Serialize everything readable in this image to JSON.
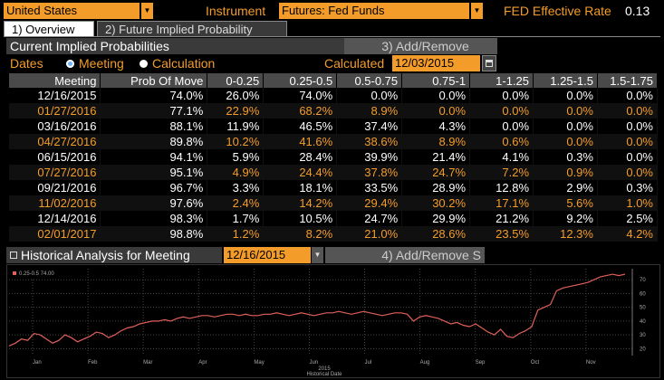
{
  "top": {
    "country": "United States",
    "instrument_label": "Instrument",
    "instrument_value": "Futures: Fed Funds",
    "fed_rate_label": "FED Effective Rate",
    "fed_rate_value": "0.13"
  },
  "tabs": [
    {
      "label": "1) Overview"
    },
    {
      "label": "2) Future Implied Probability"
    }
  ],
  "probabilities": {
    "title": "Current Implied Probabilities",
    "add_remove": "3) Add/Remove",
    "dates_label": "Dates",
    "radio_meeting": "Meeting",
    "radio_calculation": "Calculation",
    "calculated_label": "Calculated",
    "calculated_value": "12/03/2015",
    "columns": [
      "Meeting",
      "Prob Of Move",
      "0-0.25",
      "0.25-0.5",
      "0.5-0.75",
      "0.75-1",
      "1-1.25",
      "1.25-1.5",
      "1.5-1.75"
    ],
    "rows": [
      [
        "12/16/2015",
        "74.0%",
        "26.0%",
        "74.0%",
        "0.0%",
        "0.0%",
        "0.0%",
        "0.0%",
        "0.0%"
      ],
      [
        "01/27/2016",
        "77.1%",
        "22.9%",
        "68.2%",
        "8.9%",
        "0.0%",
        "0.0%",
        "0.0%",
        "0.0%"
      ],
      [
        "03/16/2016",
        "88.1%",
        "11.9%",
        "46.5%",
        "37.4%",
        "4.3%",
        "0.0%",
        "0.0%",
        "0.0%"
      ],
      [
        "04/27/2016",
        "89.8%",
        "10.2%",
        "41.6%",
        "38.6%",
        "8.9%",
        "0.6%",
        "0.0%",
        "0.0%"
      ],
      [
        "06/15/2016",
        "94.1%",
        "5.9%",
        "28.4%",
        "39.9%",
        "21.4%",
        "4.1%",
        "0.3%",
        "0.0%"
      ],
      [
        "07/27/2016",
        "95.1%",
        "4.9%",
        "24.4%",
        "37.8%",
        "24.7%",
        "7.2%",
        "0.9%",
        "0.0%"
      ],
      [
        "09/21/2016",
        "96.7%",
        "3.3%",
        "18.1%",
        "33.5%",
        "28.9%",
        "12.8%",
        "2.9%",
        "0.3%"
      ],
      [
        "11/02/2016",
        "97.6%",
        "2.4%",
        "14.2%",
        "29.4%",
        "30.2%",
        "17.1%",
        "5.6%",
        "1.0%"
      ],
      [
        "12/14/2016",
        "98.3%",
        "1.7%",
        "10.5%",
        "24.7%",
        "29.9%",
        "21.2%",
        "9.2%",
        "2.5%"
      ],
      [
        "02/01/2017",
        "98.8%",
        "1.2%",
        "8.2%",
        "21.0%",
        "28.6%",
        "23.5%",
        "12.3%",
        "4.2%"
      ]
    ]
  },
  "historical": {
    "title": "Historical Analysis for Meeting",
    "meeting_value": "12/16/2015",
    "add_remove": "4) Add/Remove S",
    "legend_text": "0.25-0.5 74.00",
    "series_color": "#e0605a"
  },
  "chart_data": {
    "type": "line",
    "series": [
      {
        "name": "0.25-0.5",
        "values": [
          22,
          24,
          27,
          26,
          31,
          30,
          27,
          24,
          26,
          30,
          28,
          25,
          27,
          29,
          32,
          31,
          28,
          30,
          33,
          35,
          36,
          38,
          39,
          40,
          40,
          41,
          40,
          42,
          43,
          42,
          43,
          44,
          44,
          43,
          44,
          45,
          45,
          44,
          45,
          44,
          44,
          45,
          45,
          46,
          45,
          44,
          45,
          46,
          45,
          44,
          45,
          46,
          46,
          47,
          46,
          45,
          46,
          47,
          46,
          45,
          44,
          45,
          46,
          46,
          45,
          40,
          43,
          44,
          43,
          42,
          40,
          38,
          39,
          37,
          36,
          38,
          35,
          32,
          30,
          34,
          29,
          28,
          31,
          33,
          36,
          48,
          50,
          52,
          62,
          64,
          65,
          66,
          67,
          68,
          70,
          72,
          73,
          74,
          73,
          74
        ]
      }
    ],
    "xlabel": "Historical Date",
    "x_year": "2015",
    "x_ticks": [
      "Jan",
      "Feb",
      "Mar",
      "Apr",
      "May",
      "Jun",
      "Jul",
      "Aug",
      "Sep",
      "Oct",
      "Nov"
    ],
    "y_ticks": [
      20,
      30,
      40,
      50,
      60,
      70
    ],
    "ylim": [
      15,
      78
    ],
    "grid": true
  }
}
